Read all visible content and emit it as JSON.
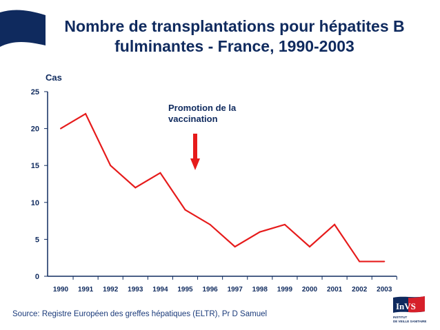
{
  "title_line1": "Nombre de transplantations pour hépatites B",
  "title_line2": "fulminantes - France, 1990-2003",
  "source": "Source: Registre Européen des greffes hépatiques (ELTR), Pr D Samuel",
  "logo": {
    "text": "InVS",
    "subtitle": "INSTITUT DE VEILLE SANITAIRE"
  },
  "colors": {
    "line": "#e61b1b",
    "axis": "#0f2a5e",
    "flag": "#0f2a5e"
  },
  "chart_data": {
    "type": "line",
    "title": "Nombre de transplantations pour hépatites B fulminantes - France, 1990-2003",
    "ylabel": "Cas",
    "xlabel": "",
    "ylim": [
      0,
      25
    ],
    "yticks": [
      "0",
      "5",
      "10",
      "15",
      "20",
      "25"
    ],
    "categories": [
      "1990",
      "1991",
      "1992",
      "1993",
      "1994",
      "1995",
      "1996",
      "1997",
      "1998",
      "1999",
      "2000",
      "2001",
      "2002",
      "2003"
    ],
    "values": [
      20,
      22,
      15,
      12,
      14,
      9,
      7,
      4,
      6,
      7,
      4,
      7,
      2,
      2
    ],
    "grid": false,
    "annotation": {
      "line1": "Promotion de la",
      "line2": "vaccination",
      "at": "1996"
    }
  }
}
